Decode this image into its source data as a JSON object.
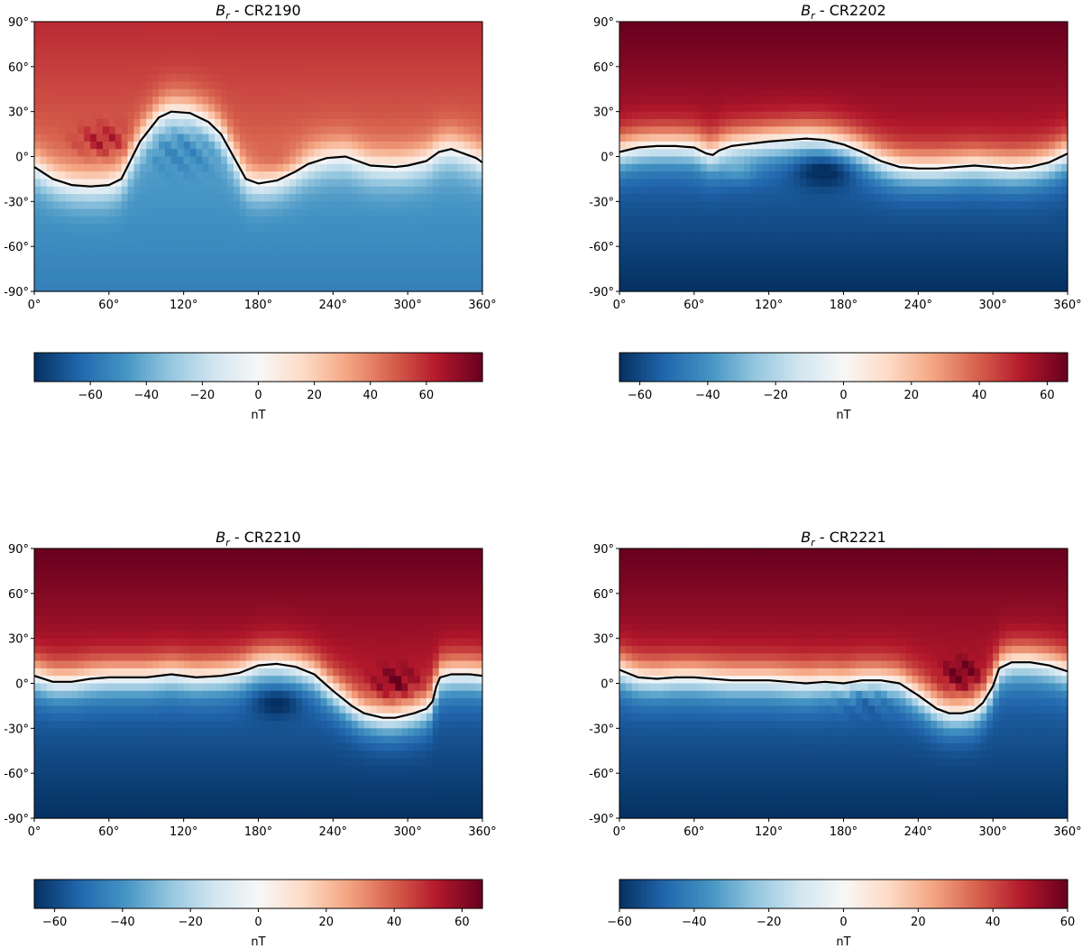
{
  "chart_data": [
    {
      "type": "heatmap",
      "title_symbol": "B",
      "title_sub": "r",
      "title_rest": " - CR2190",
      "xlim": [
        0,
        360
      ],
      "ylim": [
        -90,
        90
      ],
      "xticks": [
        0,
        60,
        120,
        180,
        240,
        300,
        360
      ],
      "xtick_labels": [
        "0°",
        "60°",
        "120°",
        "180°",
        "240°",
        "300°",
        "360°"
      ],
      "yticks": [
        90,
        60,
        30,
        0,
        -30,
        -60,
        -90
      ],
      "ytick_labels": [
        "90°",
        "60°",
        "30°",
        "0°",
        "-30°",
        "-60°",
        "-90°"
      ],
      "colormap": "RdBu_r",
      "colorbar": {
        "range": [
          -80,
          80
        ],
        "ticks": [
          -60,
          -40,
          -20,
          0,
          20,
          40,
          60
        ],
        "tick_labels": [
          "−60",
          "−40",
          "−20",
          "0",
          "20",
          "40",
          "60"
        ],
        "label": "nT"
      },
      "neutral_line": {
        "lon": [
          0,
          15,
          30,
          45,
          60,
          70,
          85,
          100,
          110,
          125,
          140,
          150,
          160,
          170,
          180,
          195,
          210,
          220,
          235,
          250,
          260,
          270,
          290,
          300,
          315,
          325,
          335,
          345,
          355,
          360
        ],
        "lat": [
          -7,
          -15,
          -19,
          -20,
          -19,
          -15,
          10,
          26,
          30,
          29,
          23,
          15,
          0,
          -15,
          -18,
          -16,
          -10,
          -5,
          -1,
          0,
          -3,
          -6,
          -7,
          -6,
          -3,
          3,
          5,
          2,
          -1,
          -4
        ]
      },
      "field": {
        "north_max": 60,
        "south_min": -55,
        "features": [
          {
            "lon": 55,
            "lat": 10,
            "amp": 25,
            "wlon": 20,
            "wlat": 10,
            "stripes": true
          },
          {
            "lon": 120,
            "lat": 5,
            "amp": -15,
            "wlon": 30,
            "wlat": 15,
            "stripes": true
          },
          {
            "lon": 200,
            "lat": -5,
            "amp": 10,
            "wlon": 25,
            "wlat": 10,
            "stripes": false
          }
        ]
      }
    },
    {
      "type": "heatmap",
      "title_symbol": "B",
      "title_sub": "r",
      "title_rest": " - CR2202",
      "xlim": [
        0,
        360
      ],
      "ylim": [
        -90,
        90
      ],
      "xticks": [
        0,
        60,
        120,
        180,
        240,
        300,
        360
      ],
      "xtick_labels": [
        "0°",
        "60°",
        "120°",
        "180°",
        "240°",
        "300°",
        "360°"
      ],
      "yticks": [
        90,
        60,
        30,
        0,
        -30,
        -60,
        -90
      ],
      "ytick_labels": [
        "90°",
        "60°",
        "30°",
        "0°",
        "-30°",
        "-60°",
        "-90°"
      ],
      "colormap": "RdBu_r",
      "colorbar": {
        "range": [
          -66,
          66
        ],
        "ticks": [
          -60,
          -40,
          -20,
          0,
          20,
          40,
          60
        ],
        "tick_labels": [
          "−60",
          "−40",
          "−20",
          "0",
          "20",
          "40",
          "60"
        ],
        "label": "nT"
      },
      "neutral_line": {
        "lon": [
          0,
          15,
          30,
          45,
          60,
          70,
          75,
          80,
          90,
          100,
          120,
          150,
          165,
          180,
          195,
          210,
          225,
          240,
          255,
          270,
          285,
          300,
          315,
          330,
          345,
          360
        ],
        "lat": [
          3,
          6,
          7,
          7,
          6,
          2,
          1,
          4,
          7,
          8,
          10,
          12,
          11,
          8,
          3,
          -3,
          -7,
          -8,
          -8,
          -7,
          -6,
          -7,
          -8,
          -7,
          -4,
          2
        ]
      },
      "field": {
        "north_max": 66,
        "south_min": -66,
        "features": [
          {
            "lon": 95,
            "lat": -10,
            "amp": 30,
            "wlon": 15,
            "wlat": 8,
            "stripes": false
          },
          {
            "lon": 165,
            "lat": -8,
            "amp": -20,
            "wlon": 25,
            "wlat": 12,
            "stripes": false
          }
        ]
      }
    },
    {
      "type": "heatmap",
      "title_symbol": "B",
      "title_sub": "r",
      "title_rest": " - CR2210",
      "xlim": [
        0,
        360
      ],
      "ylim": [
        -90,
        90
      ],
      "xticks": [
        0,
        60,
        120,
        180,
        240,
        300,
        360
      ],
      "xtick_labels": [
        "0°",
        "60°",
        "120°",
        "180°",
        "240°",
        "300°",
        "360°"
      ],
      "yticks": [
        90,
        60,
        30,
        0,
        -30,
        -60,
        -90
      ],
      "ytick_labels": [
        "90°",
        "60°",
        "30°",
        "0°",
        "-30°",
        "-60°",
        "-90°"
      ],
      "colormap": "RdBu_r",
      "colorbar": {
        "range": [
          -66,
          66
        ],
        "ticks": [
          -60,
          -40,
          -20,
          0,
          20,
          40,
          60
        ],
        "tick_labels": [
          "−60",
          "−40",
          "−20",
          "0",
          "20",
          "40",
          "60"
        ],
        "label": "nT"
      },
      "neutral_line": {
        "lon": [
          0,
          15,
          30,
          45,
          60,
          90,
          110,
          130,
          150,
          165,
          180,
          195,
          210,
          225,
          240,
          255,
          265,
          280,
          290,
          305,
          315,
          320,
          323,
          326,
          335,
          350,
          360
        ],
        "lat": [
          5,
          1,
          1,
          3,
          4,
          4,
          6,
          4,
          5,
          7,
          12,
          13,
          11,
          6,
          -5,
          -15,
          -20,
          -23,
          -23,
          -20,
          -17,
          -12,
          -2,
          4,
          6,
          6,
          5
        ]
      },
      "field": {
        "north_max": 66,
        "south_min": -66,
        "features": [
          {
            "lon": 290,
            "lat": 0,
            "amp": 25,
            "wlon": 18,
            "wlat": 10,
            "stripes": true
          },
          {
            "lon": 195,
            "lat": -12,
            "amp": -15,
            "wlon": 20,
            "wlat": 10,
            "stripes": false
          }
        ]
      }
    },
    {
      "type": "heatmap",
      "title_symbol": "B",
      "title_sub": "r",
      "title_rest": " - CR2221",
      "xlim": [
        0,
        360
      ],
      "ylim": [
        -90,
        90
      ],
      "xticks": [
        0,
        60,
        120,
        180,
        240,
        300,
        360
      ],
      "xtick_labels": [
        "0°",
        "60°",
        "120°",
        "180°",
        "240°",
        "300°",
        "360°"
      ],
      "yticks": [
        90,
        60,
        30,
        0,
        -30,
        -60,
        -90
      ],
      "ytick_labels": [
        "90°",
        "60°",
        "30°",
        "0°",
        "-30°",
        "-60°",
        "-90°"
      ],
      "colormap": "RdBu_r",
      "colorbar": {
        "range": [
          -60,
          60
        ],
        "ticks": [
          -60,
          -40,
          -20,
          0,
          20,
          40,
          60
        ],
        "tick_labels": [
          "−60",
          "−40",
          "−20",
          "0",
          "20",
          "40",
          "60"
        ],
        "label": "nT"
      },
      "neutral_line": {
        "lon": [
          0,
          15,
          30,
          45,
          60,
          90,
          120,
          150,
          165,
          180,
          195,
          210,
          225,
          240,
          255,
          265,
          275,
          285,
          292,
          300,
          305,
          315,
          330,
          345,
          360
        ],
        "lat": [
          9,
          4,
          3,
          4,
          4,
          2,
          2,
          0,
          1,
          0,
          2,
          2,
          0,
          -8,
          -17,
          -20,
          -20,
          -18,
          -13,
          -2,
          10,
          14,
          14,
          12,
          8
        ]
      },
      "field": {
        "north_max": 60,
        "south_min": -60,
        "features": [
          {
            "lon": 275,
            "lat": 5,
            "amp": 25,
            "wlon": 15,
            "wlat": 10,
            "stripes": true
          },
          {
            "lon": 195,
            "lat": -10,
            "amp": -12,
            "wlon": 25,
            "wlat": 10,
            "stripes": true
          }
        ]
      }
    }
  ]
}
